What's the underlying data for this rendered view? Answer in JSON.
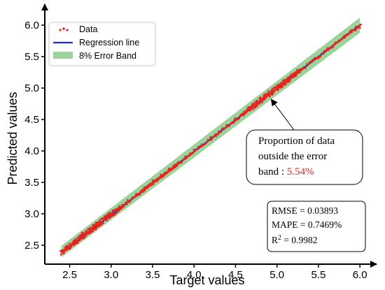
{
  "chart_data": {
    "type": "scatter",
    "xlabel": "Target values",
    "ylabel": "Predicted values",
    "xlim": [
      2.2,
      6.1
    ],
    "ylim": [
      2.2,
      6.2
    ],
    "x_ticks": [
      "2.5",
      "3.0",
      "3.5",
      "4.0",
      "4.5",
      "5.0",
      "5.5",
      "6.0"
    ],
    "y_ticks": [
      "2.5",
      "3.0",
      "3.5",
      "4.0",
      "4.5",
      "5.0",
      "5.5",
      "6.0"
    ],
    "legend": {
      "placement": "top-left",
      "entries": [
        {
          "label": "Data",
          "kind": "marker",
          "color": "#e8241f"
        },
        {
          "label": "Regression line",
          "kind": "line",
          "color": "#1f2fb8"
        },
        {
          "label": "8% Error Band",
          "kind": "patch",
          "color": "#5fb85c"
        }
      ]
    },
    "series": [
      {
        "name": "Data",
        "kind": "scatter",
        "color": "#e8241f",
        "x_range": [
          2.4,
          6.0
        ],
        "points": [
          [
            2.45,
            2.47
          ],
          [
            2.55,
            2.57
          ],
          [
            2.6,
            2.62
          ],
          [
            2.62,
            2.58
          ],
          [
            2.65,
            2.7
          ],
          [
            2.7,
            2.66
          ],
          [
            2.72,
            2.75
          ],
          [
            2.75,
            2.71
          ],
          [
            2.78,
            2.82
          ],
          [
            2.8,
            2.76
          ],
          [
            2.82,
            2.86
          ],
          [
            2.85,
            2.8
          ],
          [
            2.88,
            2.92
          ],
          [
            2.9,
            2.86
          ],
          [
            2.92,
            2.96
          ],
          [
            2.95,
            2.9
          ],
          [
            2.98,
            3.02
          ],
          [
            3.0,
            2.96
          ],
          [
            3.02,
            3.05
          ],
          [
            3.05,
            3.01
          ],
          [
            3.1,
            3.12
          ],
          [
            3.15,
            3.13
          ],
          [
            3.2,
            3.22
          ],
          [
            3.3,
            3.31
          ],
          [
            3.4,
            3.42
          ],
          [
            3.45,
            3.43
          ],
          [
            3.5,
            3.53
          ],
          [
            3.55,
            3.52
          ],
          [
            3.6,
            3.62
          ],
          [
            3.65,
            3.63
          ],
          [
            3.7,
            3.72
          ],
          [
            3.8,
            3.79
          ],
          [
            3.9,
            3.91
          ],
          [
            4.0,
            4.02
          ],
          [
            4.1,
            4.09
          ],
          [
            4.2,
            4.22
          ],
          [
            4.3,
            4.31
          ],
          [
            4.4,
            4.41
          ],
          [
            4.5,
            4.52
          ],
          [
            4.6,
            4.62
          ],
          [
            4.7,
            4.74
          ],
          [
            4.75,
            4.79
          ],
          [
            4.8,
            4.85
          ],
          [
            4.85,
            4.9
          ],
          [
            4.9,
            4.95
          ],
          [
            4.95,
            4.99
          ],
          [
            5.0,
            5.04
          ],
          [
            5.05,
            5.08
          ],
          [
            5.1,
            5.13
          ],
          [
            5.2,
            5.21
          ],
          [
            5.3,
            5.31
          ],
          [
            5.4,
            5.41
          ],
          [
            5.5,
            5.5
          ],
          [
            5.6,
            5.61
          ],
          [
            5.7,
            5.7
          ],
          [
            5.8,
            5.81
          ],
          [
            5.9,
            5.89
          ],
          [
            5.95,
            5.92
          ],
          [
            6.0,
            5.96
          ]
        ]
      },
      {
        "name": "Regression line",
        "kind": "line",
        "color": "#1f2fb8",
        "x": [
          2.4,
          6.0
        ],
        "y": [
          2.38,
          6.0
        ]
      },
      {
        "name": "8% Error Band",
        "kind": "band",
        "color": "#5fb85c",
        "x": [
          2.4,
          6.0
        ],
        "y_lower": [
          2.31,
          5.88
        ],
        "y_upper": [
          2.49,
          6.12
        ]
      }
    ],
    "annotation": {
      "lines": [
        "Proportion of data",
        "outside the error"
      ],
      "last_prefix": "band : ",
      "value": "5.54%",
      "value_color": "#e8241f",
      "arrow_target": [
        4.93,
        4.82
      ]
    },
    "metrics": {
      "rmse": "RMSE = 0.03893",
      "mape": "MAPE = 0.7469%",
      "r2_prefix": "R",
      "r2_sup": "2",
      "r2_suffix": " = 0.9982"
    }
  }
}
